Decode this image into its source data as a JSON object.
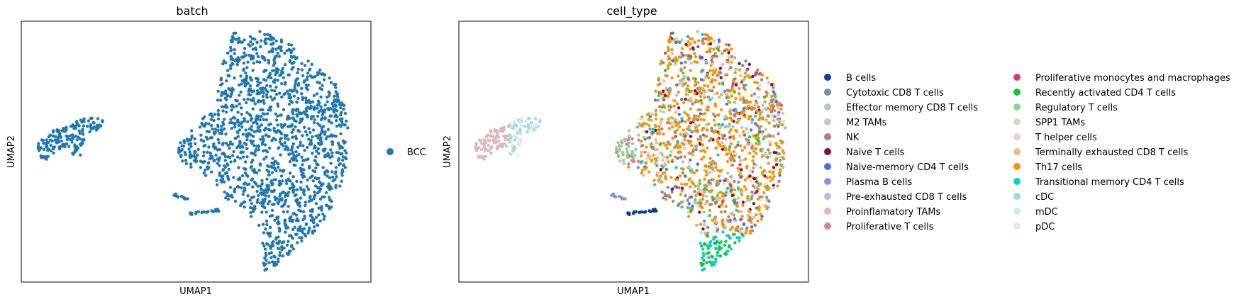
{
  "chart_data": [
    {
      "type": "scatter",
      "title": "batch",
      "xlabel": "UMAP1",
      "ylabel": "UMAP2",
      "grid": false,
      "legend_position": "right",
      "series": [
        {
          "name": "BCC",
          "color": "#1f77b4"
        }
      ],
      "clusters": [
        "left-island",
        "main-cloud",
        "small-lower-patch",
        "lower-strip"
      ]
    },
    {
      "type": "scatter",
      "title": "cell_type",
      "xlabel": "UMAP1",
      "ylabel": "UMAP2",
      "grid": false,
      "legend_position": "right",
      "series": [
        {
          "name": "B cells",
          "color": "#023fa5"
        },
        {
          "name": "Cytotoxic CD8 T cells",
          "color": "#7d87b9"
        },
        {
          "name": "Effector memory CD8 T cells",
          "color": "#bec1d4"
        },
        {
          "name": "M2 TAMs",
          "color": "#d6bcc0"
        },
        {
          "name": "NK",
          "color": "#bb7784"
        },
        {
          "name": "Naive T cells",
          "color": "#8e063b"
        },
        {
          "name": "Naive-memory CD4 T cells",
          "color": "#4a6fe3"
        },
        {
          "name": "Plasma B cells",
          "color": "#8595e1"
        },
        {
          "name": "Pre-exhausted CD8 T cells",
          "color": "#b5bbe3"
        },
        {
          "name": "Proinflamatory TAMs",
          "color": "#e6afb9"
        },
        {
          "name": "Proliferative T cells",
          "color": "#e07b91"
        },
        {
          "name": "Proliferative monocytes and macrophages",
          "color": "#d33f6a"
        },
        {
          "name": "Recently activated CD4 T cells",
          "color": "#11c638"
        },
        {
          "name": "Regulatory T cells",
          "color": "#8dd593"
        },
        {
          "name": "SPP1 TAMs",
          "color": "#c6dec7"
        },
        {
          "name": "T helper cells",
          "color": "#ead3c6"
        },
        {
          "name": "Terminally exhausted CD8 T cells",
          "color": "#f0b98d"
        },
        {
          "name": "Th17 cells",
          "color": "#ef9708"
        },
        {
          "name": "Transitional memory CD4 T cells",
          "color": "#0fcfc0"
        },
        {
          "name": "cDC",
          "color": "#9cded6"
        },
        {
          "name": "mDC",
          "color": "#d5eae7"
        },
        {
          "name": "pDC",
          "color": "#f3e1eb"
        }
      ]
    }
  ]
}
